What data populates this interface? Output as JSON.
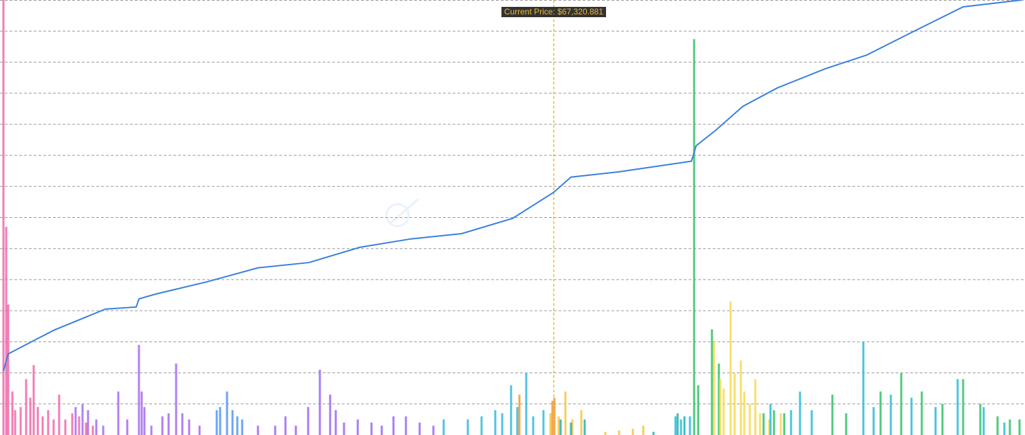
{
  "chart_data": {
    "type": "combo",
    "xlim": [
      0,
      100
    ],
    "ylim": [
      0,
      14
    ],
    "yticks": [
      1,
      2,
      3,
      4,
      5,
      6,
      7,
      8,
      9,
      10,
      11,
      12,
      13,
      14
    ],
    "grid": true,
    "annotation": {
      "text": "Current Price: $67,320.881",
      "x": 54.05,
      "color": "#f5b82e"
    },
    "series": [
      {
        "type": "bar",
        "color": "#f06fae",
        "x": [
          0,
          0.27,
          0.47,
          0.88,
          1.15,
          1.69,
          2.23,
          2.64,
          2.97,
          3.38,
          3.85,
          4.39,
          4.93,
          5.47,
          6.08,
          6.76,
          7.43,
          8.11,
          8.78
        ],
        "values": [
          14,
          6.7,
          4.2,
          1.4,
          0.8,
          0.9,
          1.8,
          1.2,
          2.25,
          0.9,
          0.6,
          0.8,
          0.5,
          1.3,
          0.5,
          0.7,
          0.6,
          0.4,
          0.3
        ]
      },
      {
        "type": "bar",
        "color": "#a872f0",
        "x": [
          7.09,
          7.77,
          8.31,
          9.12,
          9.8,
          11.28,
          12.16,
          13.31,
          13.58,
          13.85,
          14.53,
          15.61,
          16.22,
          16.96,
          17.57,
          18.24,
          19.26
        ],
        "values": [
          0.9,
          1.0,
          0.8,
          0.5,
          0.3,
          1.4,
          0.5,
          2.9,
          1.4,
          0.9,
          0.3,
          0.6,
          0.7,
          2.3,
          0.7,
          0.5,
          0.3
        ]
      },
      {
        "type": "bar",
        "color": "#5b9af5",
        "x": [
          20.95,
          21.28,
          21.96,
          22.5,
          22.97,
          23.45
        ],
        "values": [
          0.8,
          0.9,
          1.4,
          0.8,
          0.6,
          0.5
        ]
      },
      {
        "type": "bar",
        "color": "#9f6ef2",
        "x": [
          25,
          26.69,
          27.7,
          28.72,
          29.93,
          31.08,
          32.09,
          32.64,
          33.45,
          34.8,
          36.15,
          37.16,
          38.31,
          39.53,
          40.88,
          42.23
        ],
        "values": [
          0.3,
          0.3,
          0.6,
          0.3,
          0.9,
          2.1,
          1.3,
          0.8,
          0.4,
          0.5,
          0.4,
          0.3,
          0.6,
          0.6,
          0.4,
          0.3
        ]
      },
      {
        "type": "bar",
        "color": "#3cbde0",
        "x": [
          43.24,
          45.61,
          46.96,
          48.31,
          48.99,
          49.86,
          50.47,
          51.35,
          52.03,
          53.04
        ],
        "values": [
          0.5,
          0.5,
          0.6,
          0.8,
          0.7,
          1.6,
          0.9,
          2.0,
          0.6,
          0.8
        ]
      },
      {
        "type": "bar",
        "color": "#f39c3c",
        "x": [
          50.68,
          53.92,
          54.12
        ],
        "values": [
          1.3,
          1.1,
          1.2
        ]
      },
      {
        "type": "bar",
        "color": "#f5c84a",
        "x": [
          53.72,
          54.53,
          55.2,
          55.88,
          56.76,
          59.12,
          60.47,
          61.82,
          62.84
        ],
        "values": [
          0.7,
          0.6,
          1.4,
          0.5,
          0.8,
          0.1,
          0.15,
          0.2,
          0.3
        ]
      },
      {
        "type": "bar",
        "color": "#2cb5b5",
        "x": [
          54.73,
          55.74,
          57.09,
          63.85,
          66.22,
          66.89
        ],
        "values": [
          0.5,
          0.4,
          0.5,
          0.1,
          0.7,
          0.6
        ]
      },
      {
        "type": "bar",
        "color": "#3cc46e",
        "x": [
          67.84,
          68.24,
          69.59,
          70.27,
          74.66,
          75.68,
          76.69,
          81.42,
          82.77,
          86.15,
          88.18,
          90.2,
          92.23,
          94.26,
          95.95,
          97.64,
          98.85,
          99.8
        ],
        "values": [
          12.74,
          1.6,
          3.4,
          2.3,
          0.7,
          0.8,
          0.7,
          1.3,
          0.7,
          1.4,
          2.0,
          1.4,
          1.0,
          1.8,
          1.0,
          0.6,
          0.5,
          0.5
        ]
      },
      {
        "type": "bar",
        "color": "#f7dc5a",
        "x": [
          69.8,
          70.41,
          70.74,
          71.42,
          71.82,
          72.43,
          72.77,
          73.31,
          73.85,
          74.32,
          75.2,
          76.35
        ],
        "values": [
          3.0,
          1.8,
          1.5,
          4.3,
          2.0,
          2.4,
          1.4,
          1.0,
          1.8,
          0.7,
          0.5,
          0.7
        ]
      },
      {
        "type": "bar",
        "color": "#35bedc",
        "x": [
          66.01,
          66.55,
          67.43,
          75.34,
          77.36,
          78.24,
          79.39,
          84.46,
          85.47,
          87.16,
          89.19,
          91.55,
          93.72,
          96.28,
          98.31
        ],
        "values": [
          0.6,
          0.5,
          0.6,
          1.0,
          0.8,
          1.4,
          0.8,
          3.0,
          0.9,
          1.3,
          1.2,
          0.9,
          1.8,
          0.9,
          0.4
        ]
      },
      {
        "type": "line",
        "color": "#3a7fdd",
        "x": [
          0,
          0.47,
          3.04,
          5,
          10,
          13.04,
          13.31,
          15,
          20,
          25,
          30,
          35,
          40,
          45,
          50,
          54.05,
          55.74,
          60.47,
          67.57,
          68.04,
          69.93,
          72.64,
          76.01,
          80.74,
          84.8,
          89.53,
          94.26,
          100
        ],
        "values": [
          2.06,
          2.61,
          3.05,
          3.38,
          4.05,
          4.12,
          4.38,
          4.54,
          4.93,
          5.38,
          5.55,
          6.04,
          6.31,
          6.48,
          6.97,
          7.81,
          8.3,
          8.47,
          8.81,
          9.31,
          9.8,
          10.58,
          11.17,
          11.79,
          12.23,
          13.01,
          13.78,
          14.0
        ]
      }
    ]
  }
}
